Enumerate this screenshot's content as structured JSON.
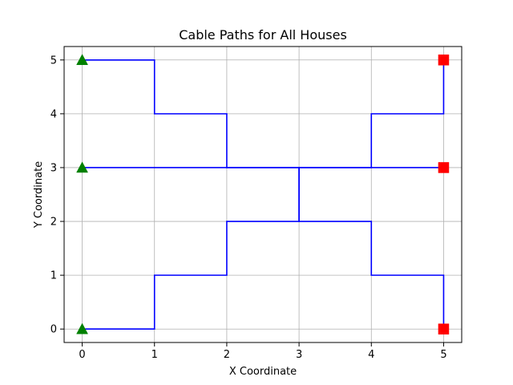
{
  "chart_data": {
    "type": "line",
    "title": "Cable Paths for All Houses",
    "xlabel": "X Coordinate",
    "ylabel": "Y Coordinate",
    "xlim": [
      -0.25,
      5.25
    ],
    "ylim": [
      -0.25,
      5.25
    ],
    "xticks": [
      0,
      1,
      2,
      3,
      4,
      5
    ],
    "yticks": [
      0,
      1,
      2,
      3,
      4,
      5
    ],
    "grid": true,
    "path_color": "#0000ff",
    "start_color": "#008000",
    "end_color": "#ff0000",
    "series": [
      {
        "points": [
          [
            0,
            5
          ],
          [
            1,
            5
          ],
          [
            1,
            4
          ],
          [
            2,
            4
          ],
          [
            2,
            3
          ],
          [
            4,
            3
          ],
          [
            4,
            4
          ],
          [
            5,
            4
          ],
          [
            5,
            5
          ]
        ]
      },
      {
        "points": [
          [
            0,
            3
          ],
          [
            3,
            3
          ],
          [
            3,
            2
          ],
          [
            4,
            2
          ],
          [
            4,
            1
          ],
          [
            5,
            1
          ],
          [
            5,
            0
          ]
        ]
      },
      {
        "points": [
          [
            0,
            0
          ],
          [
            1,
            0
          ],
          [
            1,
            1
          ],
          [
            2,
            1
          ],
          [
            2,
            2
          ],
          [
            3,
            2
          ],
          [
            3,
            3
          ],
          [
            5,
            3
          ]
        ]
      }
    ],
    "start_markers": [
      [
        0,
        5
      ],
      [
        0,
        3
      ],
      [
        0,
        0
      ]
    ],
    "end_markers": [
      [
        5,
        5
      ],
      [
        5,
        3
      ],
      [
        5,
        0
      ]
    ]
  }
}
